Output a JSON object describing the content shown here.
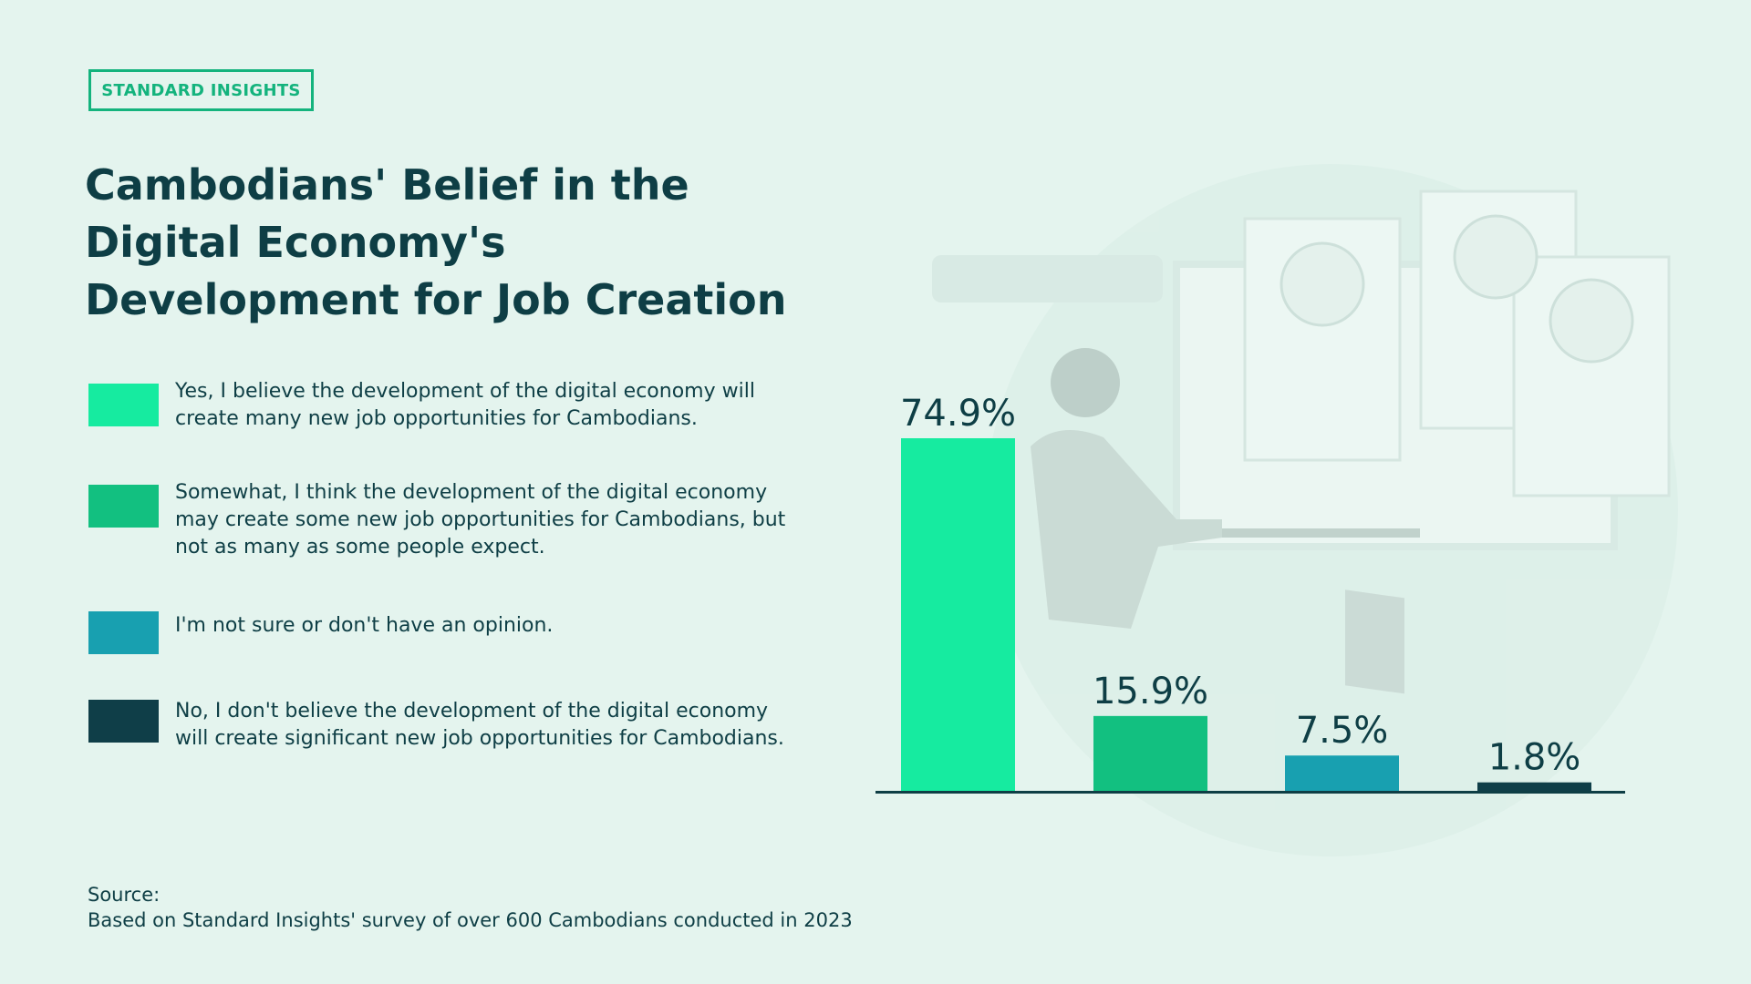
{
  "brand": "STANDARD INSIGHTS",
  "chart_data": {
    "type": "bar",
    "title": "Cambodians' Belief in the Digital Economy's Development for Job Creation",
    "categories": [
      "Yes, I believe the development of the digital economy will create many new job opportunities for Cambodians.",
      "Somewhat, I think the development of the digital economy may create some new job opportunities for Cambodians, but not as many as some people expect.",
      "I'm not sure or don't have an opinion.",
      "No, I don't believe the development of the digital economy will create significant new job opportunities for Cambodians."
    ],
    "values": [
      74.9,
      15.9,
      7.5,
      1.8
    ],
    "value_labels": [
      "74.9%",
      "15.9%",
      "7.5%",
      "1.8%"
    ],
    "colors": [
      "#16eba0",
      "#12c080",
      "#18a0b0",
      "#0f3e48"
    ]
  },
  "source": {
    "label": "Source:",
    "text": "Based on Standard Insights' survey of over 600 Cambodians conducted in 2023"
  }
}
